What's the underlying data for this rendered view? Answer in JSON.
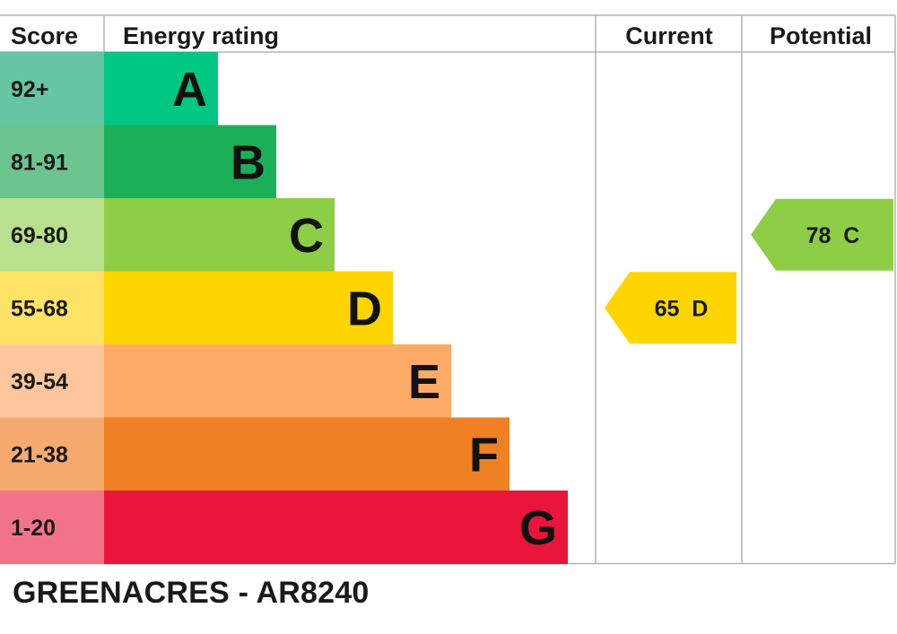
{
  "headers": {
    "score": "Score",
    "rating": "Energy rating",
    "current": "Current",
    "potential": "Potential"
  },
  "chart_data": {
    "type": "bar",
    "bands": [
      {
        "letter": "A",
        "range": "92+",
        "color": "#00c781",
        "score_color": "#66c6a4"
      },
      {
        "letter": "B",
        "range": "81-91",
        "color": "#1bb058",
        "score_color": "#6cc48f"
      },
      {
        "letter": "C",
        "range": "69-80",
        "color": "#8dce46",
        "score_color": "#b9e08c"
      },
      {
        "letter": "D",
        "range": "55-68",
        "color": "#ffd500",
        "score_color": "#ffe366"
      },
      {
        "letter": "E",
        "range": "39-54",
        "color": "#fcaa65",
        "score_color": "#fdc69c"
      },
      {
        "letter": "F",
        "range": "21-38",
        "color": "#ef8023",
        "score_color": "#f5ab6f"
      },
      {
        "letter": "G",
        "range": "1-20",
        "color": "#e9153b",
        "score_color": "#f07389"
      }
    ],
    "current": {
      "value": 65,
      "letter": "D",
      "label": "65  D",
      "color": "#ffd500"
    },
    "potential": {
      "value": 78,
      "letter": "C",
      "label": "78  C",
      "color": "#8dce46"
    }
  },
  "caption": "GREENACRES - AR8240"
}
